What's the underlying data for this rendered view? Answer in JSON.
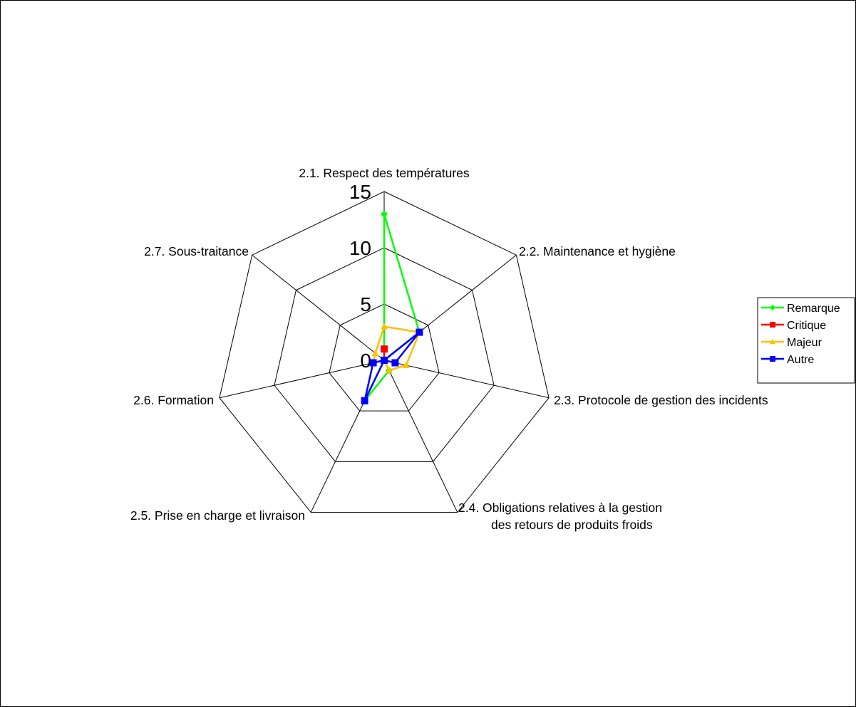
{
  "chart_data": {
    "type": "radar",
    "categories": [
      [
        "2.1. Respect des températures"
      ],
      [
        "2.2. Maintenance et hygiène"
      ],
      [
        "2.3. Protocole de gestion des incidents"
      ],
      [
        "2.4.  Obligations relatives à la gestion",
        "des retours de produits froids"
      ],
      [
        "2.5.  Prise en charge et livraison"
      ],
      [
        "2.6.  Formation"
      ],
      [
        "2.7.  Sous-traitance"
      ]
    ],
    "rlim": [
      0,
      15
    ],
    "ticks": [
      0,
      5,
      10,
      15
    ],
    "grid": true,
    "legend": "right",
    "series": [
      {
        "name": "Remarque",
        "color": "#00ff00",
        "marker": "diamond",
        "values": [
          13,
          4,
          0,
          1,
          4,
          0,
          0
        ]
      },
      {
        "name": "Critique",
        "color": "#ff0000",
        "marker": "square",
        "values": [
          1,
          0,
          0,
          0,
          0,
          0,
          0
        ]
      },
      {
        "name": "Majeur",
        "color": "#ffc000",
        "marker": "triangle",
        "values": [
          3,
          4,
          2,
          1,
          0,
          1,
          1
        ]
      },
      {
        "name": "Autre",
        "color": "#0000ff",
        "marker": "square",
        "values": [
          0,
          4,
          1,
          0,
          4,
          1,
          0
        ]
      }
    ]
  }
}
